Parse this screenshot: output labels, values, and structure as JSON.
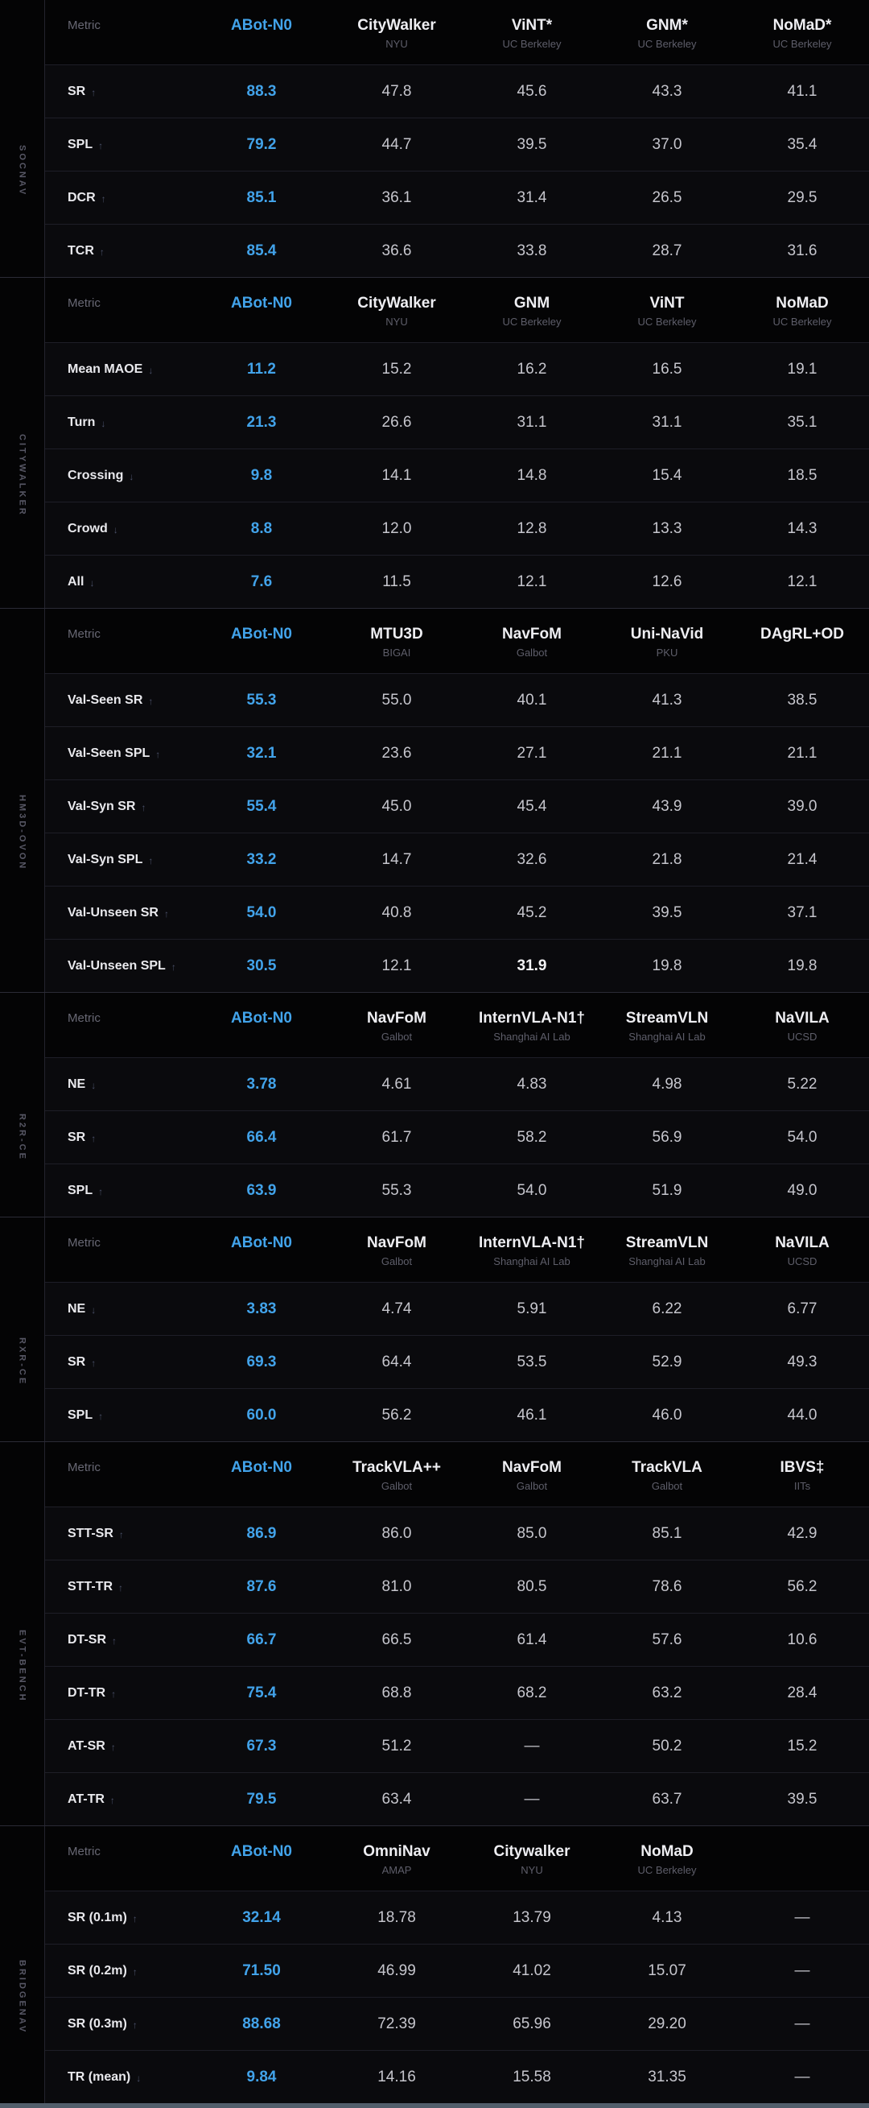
{
  "metric_header": "Metric",
  "abot_label": "ABot-N0",
  "colors": {
    "accent": "#42a3ea",
    "bottom_bar": "#525e6b"
  },
  "sections": [
    {
      "label": "SOCNAV",
      "columns": [
        {
          "name": "CityWalker",
          "org": "NYU"
        },
        {
          "name": "ViNT*",
          "org": "UC Berkeley"
        },
        {
          "name": "GNM*",
          "org": "UC Berkeley"
        },
        {
          "name": "NoMaD*",
          "org": "UC Berkeley"
        }
      ],
      "rows": [
        {
          "metric": "SR",
          "arrow": "↑",
          "abot": "88.3",
          "values": [
            "47.8",
            "45.6",
            "43.3",
            "41.1"
          ]
        },
        {
          "metric": "SPL",
          "arrow": "↑",
          "abot": "79.2",
          "values": [
            "44.7",
            "39.5",
            "37.0",
            "35.4"
          ]
        },
        {
          "metric": "DCR",
          "arrow": "↑",
          "abot": "85.1",
          "values": [
            "36.1",
            "31.4",
            "26.5",
            "29.5"
          ]
        },
        {
          "metric": "TCR",
          "arrow": "↑",
          "abot": "85.4",
          "values": [
            "36.6",
            "33.8",
            "28.7",
            "31.6"
          ]
        }
      ]
    },
    {
      "label": "CITYWALKER",
      "columns": [
        {
          "name": "CityWalker",
          "org": "NYU"
        },
        {
          "name": "GNM",
          "org": "UC Berkeley"
        },
        {
          "name": "ViNT",
          "org": "UC Berkeley"
        },
        {
          "name": "NoMaD",
          "org": "UC Berkeley"
        }
      ],
      "rows": [
        {
          "metric": "Mean MAOE",
          "arrow": "↓",
          "abot": "11.2",
          "values": [
            "15.2",
            "16.2",
            "16.5",
            "19.1"
          ]
        },
        {
          "metric": "Turn",
          "arrow": "↓",
          "abot": "21.3",
          "values": [
            "26.6",
            "31.1",
            "31.1",
            "35.1"
          ]
        },
        {
          "metric": "Crossing",
          "arrow": "↓",
          "abot": "9.8",
          "values": [
            "14.1",
            "14.8",
            "15.4",
            "18.5"
          ]
        },
        {
          "metric": "Crowd",
          "arrow": "↓",
          "abot": "8.8",
          "values": [
            "12.0",
            "12.8",
            "13.3",
            "14.3"
          ]
        },
        {
          "metric": "All",
          "arrow": "↓",
          "abot": "7.6",
          "values": [
            "11.5",
            "12.1",
            "12.6",
            "12.1"
          ]
        }
      ]
    },
    {
      "label": "HM3D-OVON",
      "columns": [
        {
          "name": "MTU3D",
          "org": "BIGAI"
        },
        {
          "name": "NavFoM",
          "org": "Galbot"
        },
        {
          "name": "Uni-NaVid",
          "org": "PKU"
        },
        {
          "name": "DAgRL+OD",
          "org": ""
        }
      ],
      "rows": [
        {
          "metric": "Val-Seen SR",
          "arrow": "↑",
          "abot": "55.3",
          "values": [
            "55.0",
            "40.1",
            "41.3",
            "38.5"
          ]
        },
        {
          "metric": "Val-Seen SPL",
          "arrow": "↑",
          "abot": "32.1",
          "values": [
            "23.6",
            "27.1",
            "21.1",
            "21.1"
          ]
        },
        {
          "metric": "Val-Syn SR",
          "arrow": "↑",
          "abot": "55.4",
          "values": [
            "45.0",
            "45.4",
            "43.9",
            "39.0"
          ]
        },
        {
          "metric": "Val-Syn SPL",
          "arrow": "↑",
          "abot": "33.2",
          "values": [
            "14.7",
            "32.6",
            "21.8",
            "21.4"
          ]
        },
        {
          "metric": "Val-Unseen SR",
          "arrow": "↑",
          "abot": "54.0",
          "values": [
            "40.8",
            "45.2",
            "39.5",
            "37.1"
          ]
        },
        {
          "metric": "Val-Unseen SPL",
          "arrow": "↑",
          "abot": "30.5",
          "values": [
            "12.1",
            "31.9",
            "19.8",
            "19.8"
          ],
          "best_index": 1
        }
      ]
    },
    {
      "label": "R2R-CE",
      "columns": [
        {
          "name": "NavFoM",
          "org": "Galbot"
        },
        {
          "name": "InternVLA-N1†",
          "org": "Shanghai AI Lab"
        },
        {
          "name": "StreamVLN",
          "org": "Shanghai AI Lab"
        },
        {
          "name": "NaVILA",
          "org": "UCSD"
        }
      ],
      "rows": [
        {
          "metric": "NE",
          "arrow": "↓",
          "abot": "3.78",
          "values": [
            "4.61",
            "4.83",
            "4.98",
            "5.22"
          ]
        },
        {
          "metric": "SR",
          "arrow": "↑",
          "abot": "66.4",
          "values": [
            "61.7",
            "58.2",
            "56.9",
            "54.0"
          ]
        },
        {
          "metric": "SPL",
          "arrow": "↑",
          "abot": "63.9",
          "values": [
            "55.3",
            "54.0",
            "51.9",
            "49.0"
          ]
        }
      ]
    },
    {
      "label": "RXR-CE",
      "columns": [
        {
          "name": "NavFoM",
          "org": "Galbot"
        },
        {
          "name": "InternVLA-N1†",
          "org": "Shanghai AI Lab"
        },
        {
          "name": "StreamVLN",
          "org": "Shanghai AI Lab"
        },
        {
          "name": "NaVILA",
          "org": "UCSD"
        }
      ],
      "rows": [
        {
          "metric": "NE",
          "arrow": "↓",
          "abot": "3.83",
          "values": [
            "4.74",
            "5.91",
            "6.22",
            "6.77"
          ]
        },
        {
          "metric": "SR",
          "arrow": "↑",
          "abot": "69.3",
          "values": [
            "64.4",
            "53.5",
            "52.9",
            "49.3"
          ]
        },
        {
          "metric": "SPL",
          "arrow": "↑",
          "abot": "60.0",
          "values": [
            "56.2",
            "46.1",
            "46.0",
            "44.0"
          ]
        }
      ]
    },
    {
      "label": "EVT-BENCH",
      "columns": [
        {
          "name": "TrackVLA++",
          "org": "Galbot"
        },
        {
          "name": "NavFoM",
          "org": "Galbot"
        },
        {
          "name": "TrackVLA",
          "org": "Galbot"
        },
        {
          "name": "IBVS‡",
          "org": "IITs"
        }
      ],
      "rows": [
        {
          "metric": "STT-SR",
          "arrow": "↑",
          "abot": "86.9",
          "values": [
            "86.0",
            "85.0",
            "85.1",
            "42.9"
          ]
        },
        {
          "metric": "STT-TR",
          "arrow": "↑",
          "abot": "87.6",
          "values": [
            "81.0",
            "80.5",
            "78.6",
            "56.2"
          ]
        },
        {
          "metric": "DT-SR",
          "arrow": "↑",
          "abot": "66.7",
          "values": [
            "66.5",
            "61.4",
            "57.6",
            "10.6"
          ]
        },
        {
          "metric": "DT-TR",
          "arrow": "↑",
          "abot": "75.4",
          "values": [
            "68.8",
            "68.2",
            "63.2",
            "28.4"
          ]
        },
        {
          "metric": "AT-SR",
          "arrow": "↑",
          "abot": "67.3",
          "values": [
            "51.2",
            "—",
            "50.2",
            "15.2"
          ]
        },
        {
          "metric": "AT-TR",
          "arrow": "↑",
          "abot": "79.5",
          "values": [
            "63.4",
            "—",
            "63.7",
            "39.5"
          ]
        }
      ]
    },
    {
      "label": "BRIDGENAV",
      "columns": [
        {
          "name": "OmniNav",
          "org": "AMAP"
        },
        {
          "name": "Citywalker",
          "org": "NYU"
        },
        {
          "name": "NoMaD",
          "org": "UC Berkeley"
        },
        {
          "name": "",
          "org": ""
        }
      ],
      "rows": [
        {
          "metric": "SR (0.1m)",
          "arrow": "↑",
          "abot": "32.14",
          "values": [
            "18.78",
            "13.79",
            "4.13",
            "—"
          ]
        },
        {
          "metric": "SR (0.2m)",
          "arrow": "↑",
          "abot": "71.50",
          "values": [
            "46.99",
            "41.02",
            "15.07",
            "—"
          ]
        },
        {
          "metric": "SR (0.3m)",
          "arrow": "↑",
          "abot": "88.68",
          "values": [
            "72.39",
            "65.96",
            "29.20",
            "—"
          ]
        },
        {
          "metric": "TR (mean)",
          "arrow": "↓",
          "abot": "9.84",
          "values": [
            "14.16",
            "15.58",
            "31.35",
            "—"
          ]
        }
      ]
    }
  ]
}
